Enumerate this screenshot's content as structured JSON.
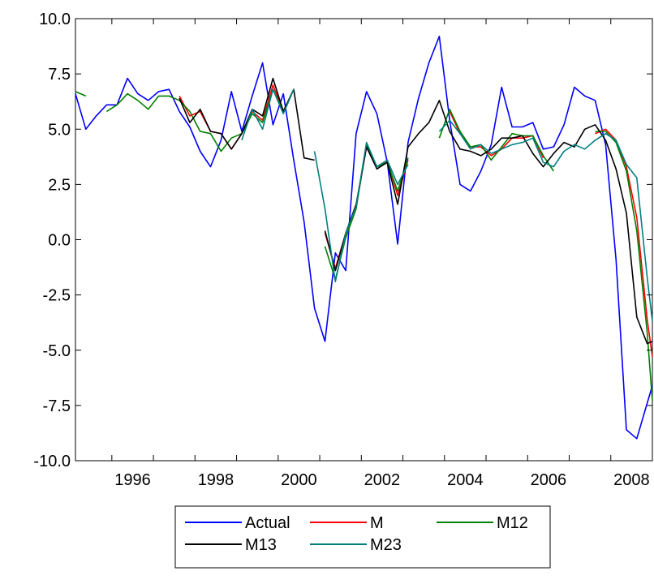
{
  "chart_data": {
    "type": "line",
    "title": "",
    "xlabel": "",
    "ylabel": "",
    "ylim": [
      -10.0,
      10.0
    ],
    "xlim": [
      1995.125,
      2009.0
    ],
    "y_ticks": [
      "10.0",
      "7.5",
      "5.0",
      "2.5",
      "0.0",
      "-2.5",
      "-5.0",
      "-7.5",
      "-10.0"
    ],
    "x_ticks": [
      "1996",
      "1998",
      "2000",
      "2002",
      "2004",
      "2006",
      "2008"
    ],
    "grid": false,
    "legend_position": "bottom-center",
    "series": [
      {
        "name": "Actual",
        "color": "#0000ff",
        "x": [
          1995.125,
          1995.375,
          1995.625,
          1995.875,
          1996.125,
          1996.375,
          1996.625,
          1996.875,
          1997.125,
          1997.375,
          1997.625,
          1997.875,
          1998.125,
          1998.375,
          1998.625,
          1998.875,
          1999.125,
          1999.375,
          1999.625,
          1999.875,
          2000.125,
          2000.375,
          2000.625,
          2000.875,
          2001.125,
          2001.375,
          2001.625,
          2001.875,
          2002.125,
          2002.375,
          2002.625,
          2002.875,
          2003.125,
          2003.375,
          2003.625,
          2003.875,
          2004.125,
          2004.375,
          2004.625,
          2004.875,
          2005.125,
          2005.375,
          2005.625,
          2005.875,
          2006.125,
          2006.375,
          2006.625,
          2006.875,
          2007.125,
          2007.375,
          2007.625,
          2007.875,
          2008.125,
          2008.375,
          2008.625,
          2008.875,
          2009.0
        ],
        "values": [
          6.6,
          5.0,
          5.6,
          6.1,
          6.1,
          7.3,
          6.6,
          6.3,
          6.7,
          6.8,
          5.8,
          5.1,
          4.0,
          3.3,
          4.5,
          6.7,
          4.9,
          6.5,
          8.0,
          5.2,
          6.6,
          3.6,
          0.8,
          -3.1,
          -4.6,
          -0.6,
          -1.4,
          4.8,
          6.7,
          5.7,
          3.5,
          -0.2,
          4.4,
          6.4,
          8.0,
          9.2,
          5.4,
          2.5,
          2.2,
          3.1,
          4.3,
          6.9,
          5.1,
          5.1,
          5.3,
          4.1,
          4.2,
          5.2,
          6.9,
          6.5,
          6.3,
          4.3,
          -0.9,
          -8.6,
          -9.0,
          -7.4,
          -6.6
        ]
      },
      {
        "name": "M",
        "color": "#ff0000",
        "segments": [
          {
            "x": [
              1997.625,
              1997.875,
              1998.125,
              1998.375,
              1998.625,
              1998.875,
              1999.125,
              1999.375,
              1999.625,
              1999.875,
              2000.125,
              2000.375
            ],
            "values": [
              6.5,
              5.6,
              5.8,
              4.9,
              4.8,
              4.1,
              4.8,
              5.8,
              5.4,
              7.0,
              5.8,
              6.8
            ]
          },
          {
            "x": [
              2001.125,
              2001.375,
              2001.625,
              2001.875,
              2002.125,
              2002.375,
              2002.625,
              2002.875,
              2003.125
            ],
            "values": [
              0.3,
              -1.3,
              0.3,
              1.5,
              4.2,
              3.3,
              3.6,
              2.0,
              3.6
            ]
          },
          {
            "x": [
              2004.125,
              2004.375,
              2004.625,
              2004.875,
              2005.125,
              2005.375,
              2005.625,
              2005.875,
              2006.125,
              2006.375
            ],
            "values": [
              5.8,
              4.8,
              4.2,
              4.2,
              3.8,
              4.1,
              4.6,
              4.6,
              4.7,
              3.7
            ]
          },
          {
            "x": [
              2007.625,
              2007.875,
              2008.125,
              2008.375,
              2008.625,
              2008.875,
              2009.0
            ],
            "values": [
              4.8,
              5.0,
              4.5,
              3.3,
              1.0,
              -3.6,
              -5.3
            ]
          }
        ]
      },
      {
        "name": "M12",
        "color": "#008000",
        "segments": [
          {
            "x": [
              1995.125,
              1995.375
            ],
            "values": [
              6.7,
              6.5
            ]
          },
          {
            "x": [
              1995.875,
              1996.125,
              1996.375,
              1996.625,
              1996.875,
              1997.125,
              1997.375,
              1997.625,
              1997.875,
              1998.125,
              1998.375,
              1998.625,
              1998.875,
              1999.125,
              1999.375,
              1999.625,
              1999.875,
              2000.125,
              2000.375
            ],
            "values": [
              5.8,
              6.1,
              6.6,
              6.3,
              5.9,
              6.5,
              6.5,
              6.3,
              5.8,
              4.9,
              4.8,
              4.0,
              4.6,
              4.8,
              5.7,
              5.3,
              6.8,
              5.8,
              6.8
            ]
          },
          {
            "x": [
              2001.125,
              2001.375,
              2001.625,
              2001.875,
              2002.125,
              2002.375,
              2002.625,
              2002.875,
              2003.125
            ],
            "values": [
              -0.3,
              -1.8,
              0.1,
              1.4,
              4.3,
              3.3,
              3.5,
              2.2,
              3.7
            ]
          },
          {
            "x": [
              2003.875,
              2004.125,
              2004.375,
              2004.625,
              2004.875,
              2005.125,
              2005.375,
              2005.625,
              2005.875,
              2006.125,
              2006.375,
              2006.625
            ],
            "values": [
              4.6,
              5.9,
              4.9,
              4.2,
              4.3,
              3.6,
              4.2,
              4.8,
              4.7,
              4.7,
              3.8,
              3.1
            ]
          },
          {
            "x": [
              2007.625,
              2007.875,
              2008.125,
              2008.375,
              2008.625,
              2008.875,
              2009.0
            ],
            "values": [
              4.9,
              4.9,
              4.4,
              3.1,
              0.4,
              -4.2,
              -7.3
            ]
          }
        ]
      },
      {
        "name": "M13",
        "color": "#000000",
        "segments": [
          {
            "x": [
              1997.625,
              1997.875,
              1998.125,
              1998.375,
              1998.625,
              1998.875,
              1999.125,
              1999.375,
              1999.625,
              1999.875,
              2000.125,
              2000.375,
              2000.625,
              2000.875
            ],
            "values": [
              6.4,
              5.3,
              5.9,
              4.9,
              4.8,
              4.1,
              4.8,
              5.9,
              5.6,
              7.3,
              5.8,
              6.8,
              3.7,
              3.6
            ]
          },
          {
            "x": [
              2001.125,
              2001.375,
              2001.625,
              2001.875,
              2002.125,
              2002.375,
              2002.625,
              2002.875,
              2003.125,
              2003.375,
              2003.625,
              2003.875,
              2004.125,
              2004.375,
              2004.625,
              2004.875,
              2005.125,
              2005.375,
              2005.625,
              2005.875,
              2006.125,
              2006.375,
              2006.625,
              2006.875,
              2007.125,
              2007.375,
              2007.625,
              2007.875,
              2008.125,
              2008.375,
              2008.625,
              2008.875,
              2009.0
            ],
            "values": [
              0.4,
              -1.4,
              0.3,
              1.6,
              4.2,
              3.2,
              3.5,
              1.6,
              4.2,
              4.8,
              5.3,
              6.3,
              4.9,
              4.1,
              4.0,
              3.8,
              4.1,
              4.6,
              4.6,
              4.7,
              3.9,
              3.3,
              3.9,
              4.4,
              4.2,
              5.0,
              5.2,
              4.5,
              3.2,
              1.2,
              -3.5,
              -4.7,
              -4.6
            ]
          }
        ]
      },
      {
        "name": "M23",
        "color": "#008080",
        "segments": [
          {
            "x": [
              1999.125,
              1999.375,
              1999.625,
              1999.875,
              2000.125,
              2000.375
            ],
            "values": [
              4.5,
              5.9,
              5.0,
              6.8,
              5.7,
              6.8
            ]
          },
          {
            "x": [
              2000.875,
              2001.125,
              2001.375,
              2001.625,
              2001.875,
              2002.125,
              2002.375,
              2002.625,
              2002.875,
              2003.125
            ],
            "values": [
              4.0,
              1.4,
              -1.9,
              0.3,
              1.5,
              4.4,
              3.3,
              3.6,
              2.5,
              3.4
            ]
          },
          {
            "x": [
              2003.875,
              2004.125,
              2004.375,
              2004.625,
              2004.875,
              2005.125,
              2005.375,
              2005.625,
              2005.875,
              2006.125,
              2006.375,
              2006.625,
              2006.875,
              2007.125,
              2007.375,
              2007.625,
              2007.875,
              2008.125,
              2008.375,
              2008.625,
              2008.875,
              2009.0
            ],
            "values": [
              4.9,
              5.4,
              4.8,
              4.1,
              4.3,
              3.9,
              4.1,
              4.3,
              4.4,
              4.6,
              3.5,
              3.3,
              4.0,
              4.3,
              4.1,
              4.5,
              4.8,
              4.5,
              3.4,
              2.8,
              -1.7,
              -3.7
            ]
          }
        ]
      }
    ],
    "legend": [
      {
        "label": "Actual",
        "color": "#0000ff"
      },
      {
        "label": "M",
        "color": "#ff0000"
      },
      {
        "label": "M12",
        "color": "#008000"
      },
      {
        "label": "M13",
        "color": "#000000"
      },
      {
        "label": "M23",
        "color": "#008080"
      }
    ]
  }
}
